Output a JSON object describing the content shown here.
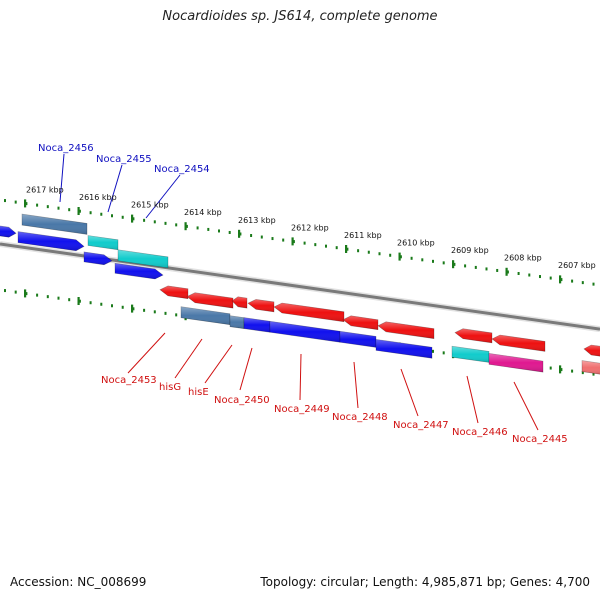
{
  "title": "Nocardioides sp. JS614, complete genome",
  "accession": "Accession: NC_008699",
  "summary": "Topology: circular; Length: 4,985,871 bp; Genes: 4,700",
  "colors": {
    "backbone": "#7a7a7a",
    "ticks": "#1a7a1a",
    "label_top": "#1010c0",
    "label_bottom": "#d01010",
    "gene_red": "#ee1111",
    "gene_blue": "#1111ee",
    "gene_cyan": "#11cccc",
    "gene_steel": "#4a78a8",
    "gene_magenta": "#e01890",
    "gene_pink": "#f07070"
  },
  "scale_labels": [
    "2617 kbp",
    "2616 kbp",
    "2615 kbp",
    "2614 kbp",
    "2613 kbp",
    "2612 kbp",
    "2611 kbp",
    "2610 kbp",
    "2609 kbp",
    "2608 kbp",
    "2607 kbp"
  ],
  "top_gene_labels": [
    "Noca_2456",
    "Noca_2455",
    "Noca_2454"
  ],
  "bottom_gene_labels": [
    "Noca_2453",
    "hisG",
    "hisE",
    "Noca_2450",
    "Noca_2449",
    "Noca_2448",
    "Noca_2447",
    "Noca_2446",
    "Noca_2445"
  ]
}
